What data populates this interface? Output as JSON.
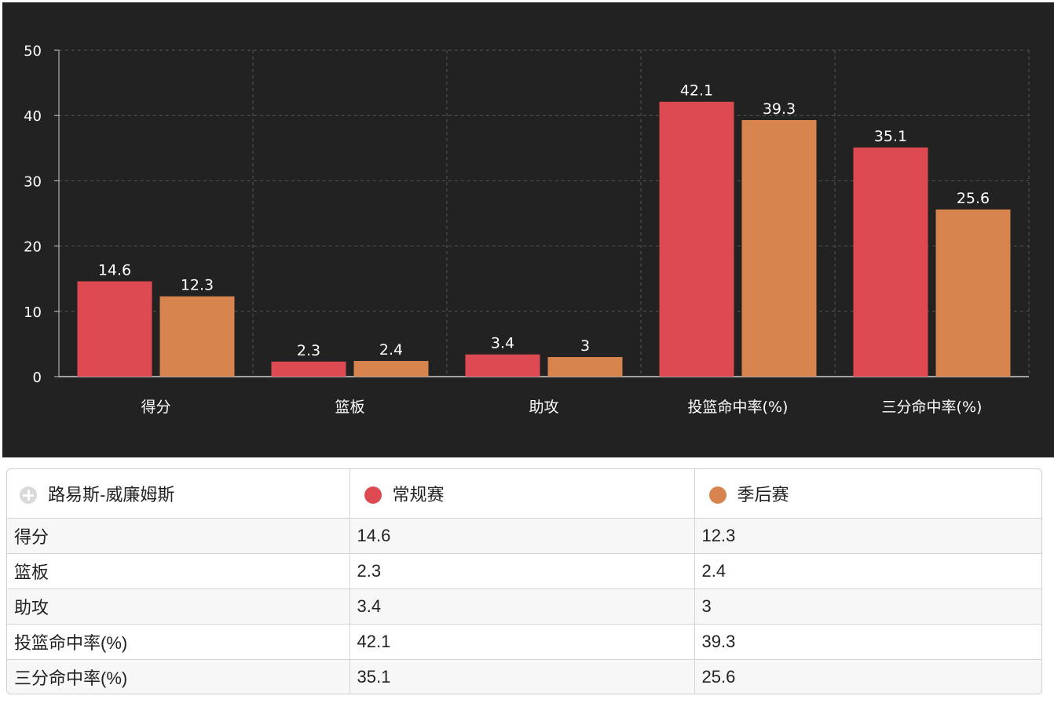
{
  "colors": {
    "regular": "#de4a52",
    "playoff": "#d8844f",
    "background": "#222222",
    "axis_text": "#ffffff",
    "grid": "#555555"
  },
  "chart_data": {
    "type": "bar",
    "categories": [
      "得分",
      "篮板",
      "助攻",
      "投篮命中率(%)",
      "三分命中率(%)"
    ],
    "series": [
      {
        "name": "常规赛",
        "values": [
          14.6,
          2.3,
          3.4,
          42.1,
          35.1
        ]
      },
      {
        "name": "季后赛",
        "values": [
          12.3,
          2.4,
          3,
          39.3,
          25.6
        ]
      }
    ],
    "value_labels": [
      [
        "14.6",
        "2.3",
        "3.4",
        "42.1",
        "35.1"
      ],
      [
        "12.3",
        "2.4",
        "3",
        "39.3",
        "25.6"
      ]
    ],
    "ylim": [
      0,
      50
    ],
    "yticks": [
      "0",
      "10",
      "20",
      "30",
      "40",
      "50"
    ],
    "grid": true,
    "grid_style": "dashed"
  },
  "table": {
    "player_name": "路易斯-威廉姆斯",
    "header_regular": "常规赛",
    "header_playoff": "季后赛",
    "rows": [
      {
        "stat": "得分",
        "regular": "14.6",
        "playoff": "12.3"
      },
      {
        "stat": "篮板",
        "regular": "2.3",
        "playoff": "2.4"
      },
      {
        "stat": "助攻",
        "regular": "3.4",
        "playoff": "3"
      },
      {
        "stat": "投篮命中率(%)",
        "regular": "42.1",
        "playoff": "39.3"
      },
      {
        "stat": "三分命中率(%)",
        "regular": "35.1",
        "playoff": "25.6"
      }
    ]
  }
}
